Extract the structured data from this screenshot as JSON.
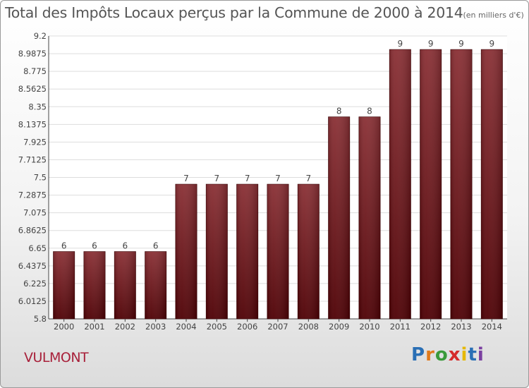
{
  "header": {
    "title": "Total des Impôts Locaux perçus par la Commune de 2000 à 2014",
    "unit": "(en milliers d'€)"
  },
  "footer": {
    "commune": "VULMONT",
    "brand": "Proxiti"
  },
  "colors": {
    "bar": "#6e1016",
    "grid": "#dddddd",
    "title": "#555555",
    "commune": "#a8203a"
  },
  "chart_data": {
    "type": "bar",
    "title": "Total des Impôts Locaux perçus par la Commune de 2000 à 2014",
    "unit_label": "(en milliers d'€)",
    "xlabel": "",
    "ylabel": "",
    "categories": [
      "2000",
      "2001",
      "2002",
      "2003",
      "2004",
      "2005",
      "2006",
      "2007",
      "2008",
      "2009",
      "2010",
      "2011",
      "2012",
      "2013",
      "2014"
    ],
    "values": [
      6,
      6,
      6,
      6,
      7,
      7,
      7,
      7,
      7,
      8,
      8,
      9,
      9,
      9,
      9
    ],
    "ylim": [
      5.8,
      9.2
    ],
    "yticks": [
      "9.2",
      "8.9875",
      "8.775",
      "8.5625",
      "8.35",
      "8.1375",
      "7.925",
      "7.7125",
      "7.5",
      "7.2875",
      "7.075",
      "6.8625",
      "6.65",
      "6.4375",
      "6.225",
      "6.0125",
      "5.8"
    ],
    "grid": true,
    "bar_offset_rule": "bars drawn with heights scaled from 5 to the axis range"
  }
}
